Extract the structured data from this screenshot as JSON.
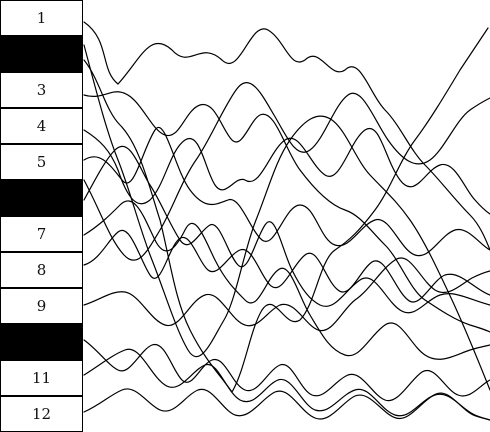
{
  "puzzle": {
    "rows": [
      {
        "label": "1",
        "black": false
      },
      {
        "label": "",
        "black": true
      },
      {
        "label": "3",
        "black": false
      },
      {
        "label": "4",
        "black": false
      },
      {
        "label": "5",
        "black": false
      },
      {
        "label": "",
        "black": true
      },
      {
        "label": "7",
        "black": false
      },
      {
        "label": "8",
        "black": false
      },
      {
        "label": "9",
        "black": false
      },
      {
        "label": "",
        "black": true
      },
      {
        "label": "11",
        "black": false
      },
      {
        "label": "12",
        "black": false
      }
    ],
    "line_color": "#000000",
    "line_count": 12
  }
}
